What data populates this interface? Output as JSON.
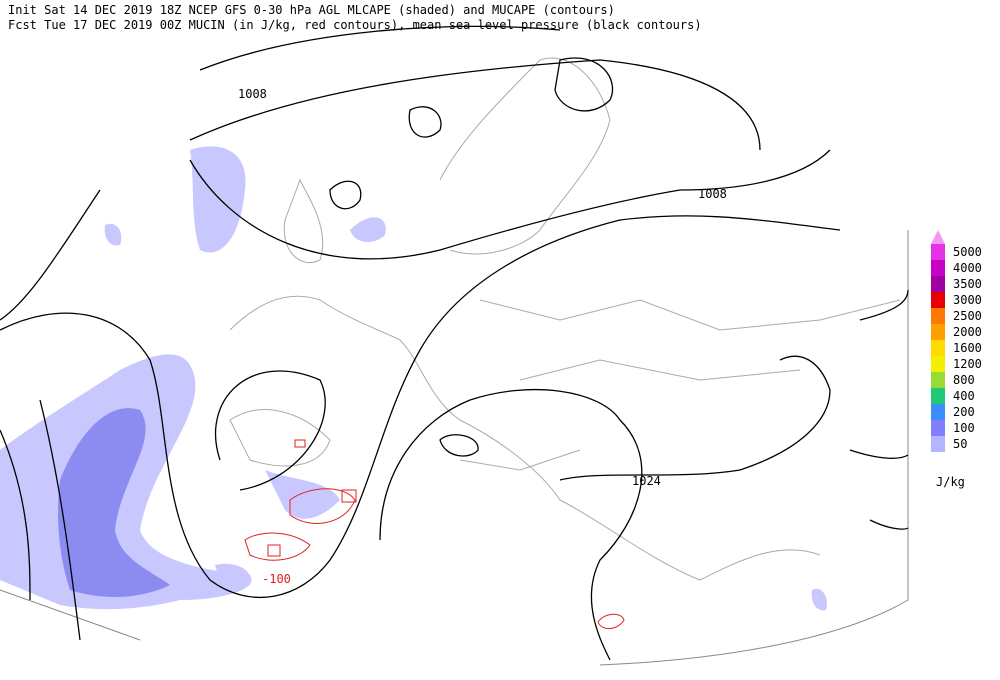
{
  "header": {
    "line1": "Init  Sat 14 DEC 2019 18Z  NCEP GFS 0-30 hPa AGL MLCAPE (shaded) and MUCAPE (contours)",
    "line2": "Fcst Tue 17 DEC 2019 00Z  MUCIN (in J/kg, red contours), mean sea level pressure (black contours)"
  },
  "contour_labels": [
    "1008",
    "1008",
    "1024",
    "-100"
  ],
  "legend": {
    "unit": "J/kg",
    "entries": [
      {
        "value": 5000,
        "color": "#e632e6"
      },
      {
        "value": 4000,
        "color": "#c800c8"
      },
      {
        "value": 3500,
        "color": "#a000a0"
      },
      {
        "value": 3000,
        "color": "#e60000"
      },
      {
        "value": 2500,
        "color": "#ff7800"
      },
      {
        "value": 2000,
        "color": "#ffa000"
      },
      {
        "value": 1600,
        "color": "#ffdc00"
      },
      {
        "value": 1200,
        "color": "#f0f000"
      },
      {
        "value": 800,
        "color": "#96dc32"
      },
      {
        "value": 400,
        "color": "#20c878"
      },
      {
        "value": 200,
        "color": "#3c8cff"
      },
      {
        "value": 100,
        "color": "#8080ff"
      },
      {
        "value": 50,
        "color": "#b4b4ff"
      }
    ]
  }
}
